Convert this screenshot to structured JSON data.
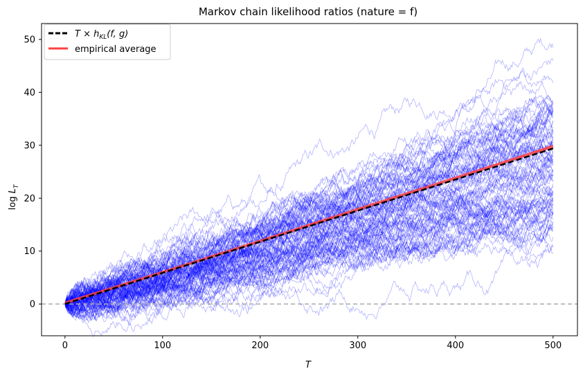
{
  "chart_data": {
    "type": "line",
    "title": "Markov chain likelihood ratios (nature = f)",
    "xlabel": "T",
    "ylabel": "log L_T",
    "xlim": [
      -24,
      525
    ],
    "ylim": [
      -6,
      53
    ],
    "x_ticks": [
      0,
      100,
      200,
      300,
      400,
      500
    ],
    "y_ticks": [
      0,
      10,
      20,
      30,
      40,
      50
    ],
    "x_tick_labels": [
      "0",
      "100",
      "200",
      "300",
      "400",
      "500"
    ],
    "y_tick_labels": [
      "0",
      "10",
      "20",
      "30",
      "40",
      "50"
    ],
    "grid": false,
    "legend_position": "top-left",
    "reference_line": {
      "y": 0,
      "style": "dashed",
      "color": "#aaaaaa"
    },
    "simulation_paths": {
      "count": 100,
      "color": "#0000ff",
      "opacity": 0.3,
      "T_max": 500,
      "final_values_sample": [
        50,
        45,
        42,
        38,
        37,
        35,
        34,
        33,
        32,
        31,
        30,
        29,
        28,
        27,
        26,
        25,
        24,
        23,
        22,
        21,
        20,
        19,
        18,
        17,
        16,
        15,
        14,
        5
      ]
    },
    "series": [
      {
        "name": "T × h_KL(f, g)",
        "style": "dashed",
        "color": "#000000",
        "x": [
          0,
          500
        ],
        "y": [
          0,
          29.4
        ]
      },
      {
        "name": "empirical average",
        "style": "solid",
        "color": "#ff4040",
        "x": [
          0,
          100,
          200,
          300,
          400,
          500
        ],
        "y": [
          0.2,
          6.0,
          11.9,
          17.9,
          23.8,
          29.8
        ]
      }
    ],
    "legend": {
      "entries": [
        {
          "label_main": "T × h",
          "label_sub": "KL",
          "label_args": "(f, g)",
          "color": "#000000",
          "style": "dashed"
        },
        {
          "label_main": "empirical average",
          "color": "#ff4040",
          "style": "solid"
        }
      ]
    }
  }
}
